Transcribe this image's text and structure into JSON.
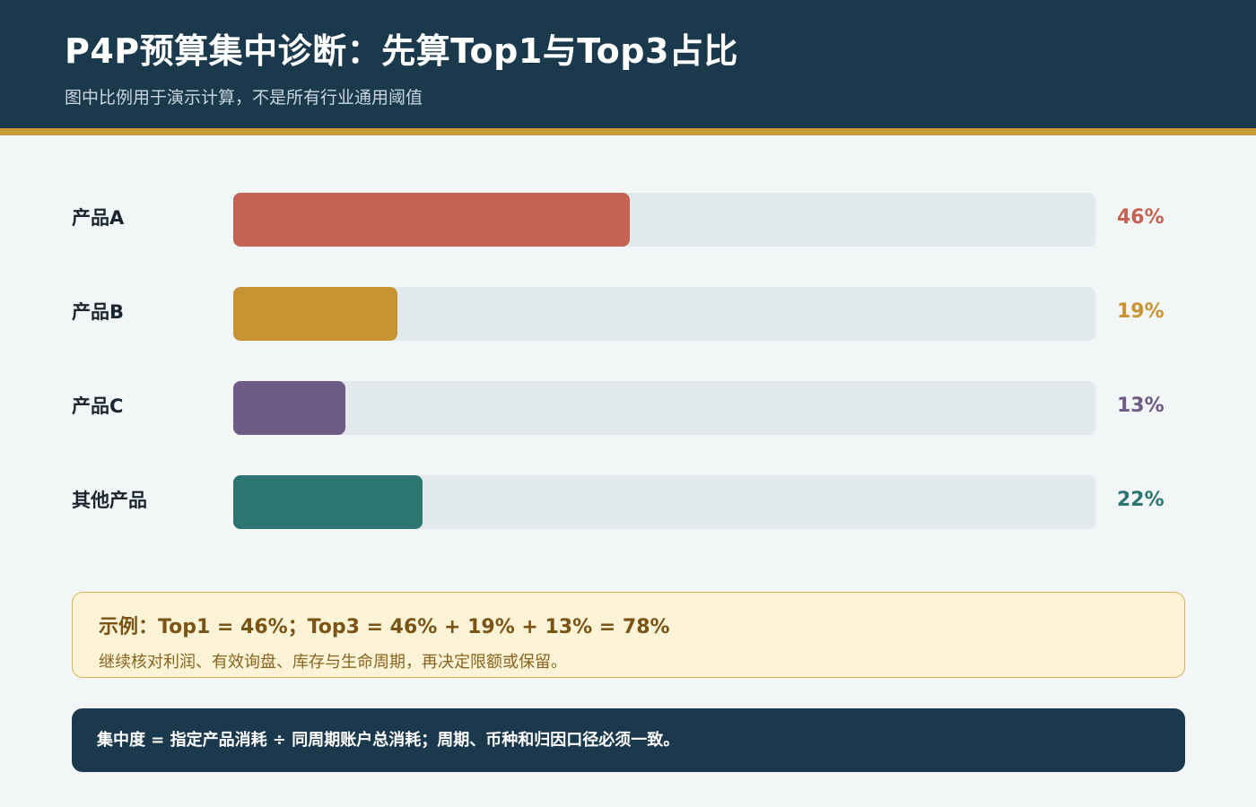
{
  "header": {
    "title": "P4P预算集中诊断：先算Top1与Top3占比",
    "subtitle": "图中比例用于演示计算，不是所有行业通用阈值"
  },
  "colors": {
    "header_bg": "#1b394d",
    "accent": "#c79a35",
    "track": "#e2e9ec"
  },
  "chart_data": {
    "type": "bar",
    "orientation": "horizontal",
    "categories": [
      "产品A",
      "产品B",
      "产品C",
      "其他产品"
    ],
    "values": [
      46,
      19,
      13,
      22
    ],
    "value_labels": [
      "46%",
      "19%",
      "13%",
      "22%"
    ],
    "colors": [
      "#c46253",
      "#c79433",
      "#6e5b85",
      "#2d7570"
    ],
    "xlim": [
      0,
      100
    ],
    "unit": "%",
    "grid": false
  },
  "example": {
    "title": "示例：Top1 = 46%；Top3 = 46% + 19% + 13% = 78%",
    "note": "继续核对利润、有效询盘、库存与生命周期，再决定限额或保留。"
  },
  "footer": {
    "text": "集中度 = 指定产品消耗 ÷ 同周期账户总消耗；周期、币种和归因口径必须一致。"
  }
}
